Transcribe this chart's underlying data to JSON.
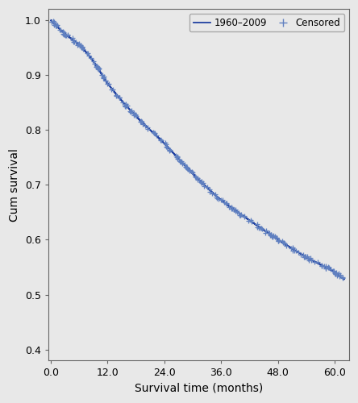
{
  "xlabel": "Survival time (months)",
  "ylabel": "Cum survival",
  "xlim": [
    -0.5,
    63
  ],
  "ylim": [
    0.38,
    1.02
  ],
  "xticks": [
    0.0,
    12.0,
    24.0,
    36.0,
    48.0,
    60.0
  ],
  "yticks": [
    0.4,
    0.5,
    0.6,
    0.7,
    0.8,
    0.9,
    1.0
  ],
  "line_color": "#2040a0",
  "censored_color": "#6080c0",
  "bg_color": "#e8e8e8",
  "plot_bg_color": "#e8e8e8",
  "legend_label_1": "1960–2009",
  "legend_label_2": "Censored",
  "key_points": {
    "t": [
      0,
      3,
      6,
      9,
      12,
      18,
      24,
      30,
      36,
      42,
      48,
      54,
      60,
      62
    ],
    "s": [
      1.0,
      0.975,
      0.955,
      0.925,
      0.885,
      0.825,
      0.775,
      0.72,
      0.672,
      0.635,
      0.6,
      0.568,
      0.54,
      0.527
    ]
  }
}
